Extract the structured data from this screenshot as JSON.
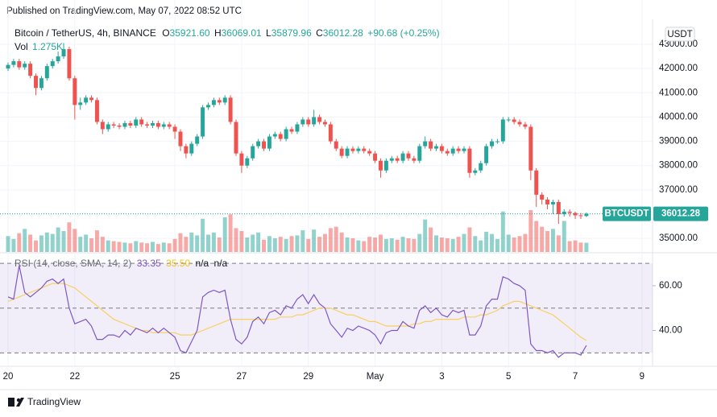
{
  "published": "Published on TradingView.com, May 07, 2022 08:52 UTC",
  "brand": "TradingView",
  "chart_data": {
    "type": "candlestick",
    "symbol": "Bitcoin / TetherUS, 4h, BINANCE",
    "header": {
      "o_key": "O",
      "o": "35921.60",
      "h_key": "H",
      "l_key": "L",
      "c_key": "C",
      "change": "+90.68 (+0.25%)"
    },
    "volume_title": "Vol",
    "volume_label": "1.275K",
    "currency": "USDT",
    "ticker": "BTCUSDT",
    "up_color": "#26a69a",
    "down_color": "#ef5350",
    "xlim": [
      -1.45,
      115.9
    ],
    "xticks": [
      {
        "value": 0,
        "label": "20"
      },
      {
        "value": 12,
        "label": "22"
      },
      {
        "value": 30,
        "label": "25"
      },
      {
        "value": 42,
        "label": "27"
      },
      {
        "value": 54,
        "label": "29"
      },
      {
        "value": 66,
        "label": "May"
      },
      {
        "value": 78,
        "label": "3"
      },
      {
        "value": 90,
        "label": "5"
      },
      {
        "value": 102,
        "label": "7"
      },
      {
        "value": 114,
        "label": "9"
      }
    ],
    "ylim": [
      34440,
      43830
    ],
    "yticks": [
      {
        "value": 35000,
        "label": "35000.00"
      },
      {
        "value": 36000,
        "label": "36000.00"
      },
      {
        "value": 37000,
        "label": "37000.00"
      },
      {
        "value": 38000,
        "label": "38000.00"
      },
      {
        "value": 39000,
        "label": "39000.00"
      },
      {
        "value": 40000,
        "label": "40000.00"
      },
      {
        "value": 41000,
        "label": "41000.00"
      },
      {
        "value": 42000,
        "label": "42000.00"
      },
      {
        "value": 43000,
        "label": "43000.00"
      }
    ],
    "grid": true,
    "open": [
      42000,
      42150,
      42300,
      42050,
      42200,
      41700,
      41200,
      41600,
      42100,
      42300,
      42500,
      42800,
      41600,
      40500,
      40600,
      40800,
      40700,
      39800,
      39500,
      39700,
      39650,
      39600,
      39750,
      39650,
      39900,
      39700,
      39650,
      39750,
      39600,
      39700,
      39600,
      39400,
      38800,
      38500,
      38900,
      39200,
      40400,
      40500,
      40700,
      40600,
      40800,
      39800,
      38500,
      38000,
      38300,
      38800,
      39000,
      38700,
      39200,
      39300,
      39100,
      39500,
      39400,
      39700,
      39900,
      39700,
      40000,
      39800,
      39700,
      39000,
      38700,
      38400,
      38700,
      38600,
      38700,
      38600,
      38500,
      38200,
      37800,
      38200,
      38300,
      38200,
      38500,
      38300,
      38200,
      38800,
      39000,
      38700,
      38800,
      38600,
      38500,
      38700,
      38600,
      38700,
      37700,
      37800,
      38100,
      38800,
      39000,
      39000,
      39900,
      39900,
      39800,
      39700,
      39600,
      37800,
      36800,
      36600,
      36400,
      36500,
      36000,
      36100,
      36050,
      35950,
      35921.6
    ],
    "high": [
      42250,
      42400,
      42400,
      42300,
      42300,
      41800,
      41700,
      42200,
      42400,
      42700,
      43050,
      42900,
      41700,
      40800,
      40900,
      40900,
      40800,
      39900,
      39800,
      39800,
      39750,
      39850,
      39850,
      40000,
      40000,
      39800,
      39850,
      39850,
      39800,
      39800,
      39700,
      39500,
      38900,
      39000,
      39300,
      40500,
      40600,
      40800,
      40800,
      40900,
      40900,
      39900,
      38600,
      38400,
      38900,
      39100,
      39100,
      39300,
      39400,
      39400,
      39600,
      39600,
      39800,
      40000,
      40000,
      40300,
      40100,
      39900,
      39800,
      39100,
      38800,
      38800,
      38800,
      38800,
      38800,
      38700,
      38600,
      38300,
      38300,
      38400,
      38400,
      38600,
      38600,
      38400,
      38900,
      39200,
      39100,
      38900,
      38900,
      38700,
      38800,
      38800,
      38800,
      38800,
      37900,
      38200,
      38900,
      39100,
      39100,
      40000,
      40000,
      40000,
      39900,
      39800,
      39700,
      37900,
      36900,
      36700,
      36600,
      36600,
      36200,
      36200,
      36100,
      36050,
      36069.01
    ],
    "low": [
      41900,
      42050,
      41950,
      41950,
      41600,
      40900,
      41100,
      41500,
      42000,
      42200,
      42400,
      41500,
      39900,
      40300,
      40500,
      40600,
      39700,
      39300,
      39400,
      39550,
      39500,
      39500,
      39550,
      39550,
      39600,
      39550,
      39550,
      39500,
      39500,
      39500,
      39100,
      38600,
      38300,
      38400,
      38800,
      39100,
      40300,
      40400,
      40500,
      40500,
      39700,
      38400,
      37700,
      37900,
      38200,
      38700,
      38600,
      38600,
      39100,
      39000,
      39000,
      39300,
      39300,
      39600,
      39600,
      39600,
      39700,
      39600,
      38900,
      38600,
      38300,
      38300,
      38500,
      38500,
      38500,
      38400,
      38100,
      37500,
      37700,
      38100,
      38100,
      38100,
      38200,
      38100,
      38100,
      38700,
      38600,
      38600,
      38500,
      38400,
      38400,
      38500,
      38500,
      37500,
      37600,
      37700,
      38000,
      38700,
      38900,
      38900,
      39800,
      39700,
      39600,
      39500,
      37400,
      36300,
      36400,
      36200,
      36000,
      35600,
      35900,
      35900,
      35800,
      35800,
      35879.96
    ],
    "close": [
      42150,
      42300,
      42050,
      42200,
      41700,
      41200,
      41600,
      42100,
      42300,
      42500,
      42800,
      41600,
      40500,
      40600,
      40800,
      40700,
      39800,
      39500,
      39700,
      39650,
      39600,
      39750,
      39650,
      39900,
      39700,
      39650,
      39750,
      39600,
      39700,
      39600,
      39400,
      38800,
      38500,
      38900,
      39200,
      40400,
      40500,
      40700,
      40600,
      40800,
      39800,
      38500,
      38000,
      38300,
      38800,
      39000,
      38700,
      39200,
      39300,
      39100,
      39500,
      39400,
      39700,
      39900,
      39700,
      40000,
      39800,
      39700,
      39000,
      38700,
      38400,
      38700,
      38600,
      38700,
      38600,
      38500,
      38200,
      37800,
      38200,
      38300,
      38200,
      38500,
      38300,
      38200,
      38800,
      39000,
      38700,
      38800,
      38600,
      38500,
      38700,
      38600,
      38700,
      37700,
      37800,
      38100,
      38800,
      39000,
      39000,
      39900,
      39900,
      39800,
      39700,
      39600,
      37800,
      36800,
      36600,
      36400,
      36500,
      36000,
      36100,
      36050,
      35950,
      35921.6,
      36012.28
    ],
    "volume": [
      2200,
      1800,
      2600,
      3200,
      2400,
      1600,
      2300,
      2700,
      2500,
      3400,
      2900,
      4100,
      3200,
      2100,
      2400,
      1900,
      3000,
      2100,
      1600,
      1500,
      1400,
      1300,
      1200,
      1500,
      1300,
      1200,
      1400,
      1100,
      1300,
      1200,
      1800,
      2600,
      2100,
      2700,
      2300,
      4600,
      2400,
      2700,
      2000,
      4800,
      5200,
      3300,
      2900,
      2000,
      2400,
      2700,
      1700,
      2200,
      1900,
      2100,
      1800,
      2200,
      2300,
      3000,
      1800,
      3100,
      2100,
      2500,
      3300,
      3500,
      2700,
      2000,
      1900,
      1600,
      1500,
      2100,
      2000,
      2400,
      1800,
      1900,
      1700,
      2100,
      1900,
      1800,
      2500,
      4500,
      3400,
      2300,
      2000,
      1900,
      1800,
      2100,
      2500,
      3400,
      2200,
      1600,
      2800,
      2500,
      1800,
      5600,
      2400,
      2000,
      2200,
      2500,
      5800,
      4300,
      3500,
      2900,
      3200,
      2300,
      4300,
      1500,
      1600,
      1300,
      1275
    ],
    "rsi": {
      "title": "RSI (14, close, SMA, 14, 2)",
      "color": "#7e57c2",
      "values": [
        55,
        54,
        69,
        57,
        55,
        57,
        59,
        62,
        63,
        61,
        63,
        50,
        43,
        44,
        45,
        42,
        36,
        36,
        38,
        38,
        37,
        40,
        38,
        41,
        40,
        39,
        41,
        39,
        41,
        39,
        37,
        31,
        30,
        35,
        40,
        55,
        57,
        58,
        57,
        58,
        45,
        36,
        34,
        37,
        44,
        46,
        43,
        48,
        49,
        47,
        51,
        50,
        54,
        56,
        52,
        56,
        52,
        50,
        43,
        40,
        37,
        41,
        40,
        42,
        41,
        40,
        38,
        34,
        39,
        40,
        40,
        44,
        42,
        41,
        49,
        51,
        48,
        50,
        47,
        46,
        49,
        48,
        49,
        38,
        38,
        42,
        51,
        54,
        54,
        64,
        63,
        61,
        60,
        58,
        34,
        31,
        31,
        30,
        31,
        28,
        30,
        30,
        30,
        29,
        33.35
      ],
      "sma": {
        "color": "#f7d060",
        "value_label": "35.50",
        "values": [
          53,
          54,
          55,
          56,
          57,
          58,
          59,
          60,
          61,
          61,
          61,
          60,
          59,
          57,
          55,
          53,
          51,
          49,
          47,
          45,
          44,
          43,
          42,
          41,
          40,
          40,
          39,
          39,
          39,
          39,
          39,
          38,
          38,
          38,
          39,
          40,
          41,
          42,
          43,
          44,
          45,
          45,
          45,
          45,
          45,
          45,
          45,
          45,
          45,
          46,
          46,
          46,
          47,
          47,
          48,
          49,
          50,
          50,
          50,
          49,
          48,
          47,
          47,
          46,
          45,
          44,
          44,
          43,
          42,
          42,
          42,
          42,
          42,
          43,
          43,
          44,
          44,
          45,
          45,
          45,
          45,
          45,
          46,
          46,
          46,
          47,
          47,
          48,
          49,
          51,
          52,
          53,
          53,
          52,
          51,
          50,
          49,
          48,
          47,
          45,
          43,
          41,
          39,
          37,
          35.5
        ]
      },
      "extra_labels": [
        "n/a",
        "n/a"
      ],
      "ylim": [
        24,
        74
      ],
      "yticks": [
        {
          "value": 40,
          "label": "40.00"
        },
        {
          "value": 60,
          "label": "60.00"
        }
      ],
      "bands": [
        70,
        50,
        30
      ]
    }
  }
}
